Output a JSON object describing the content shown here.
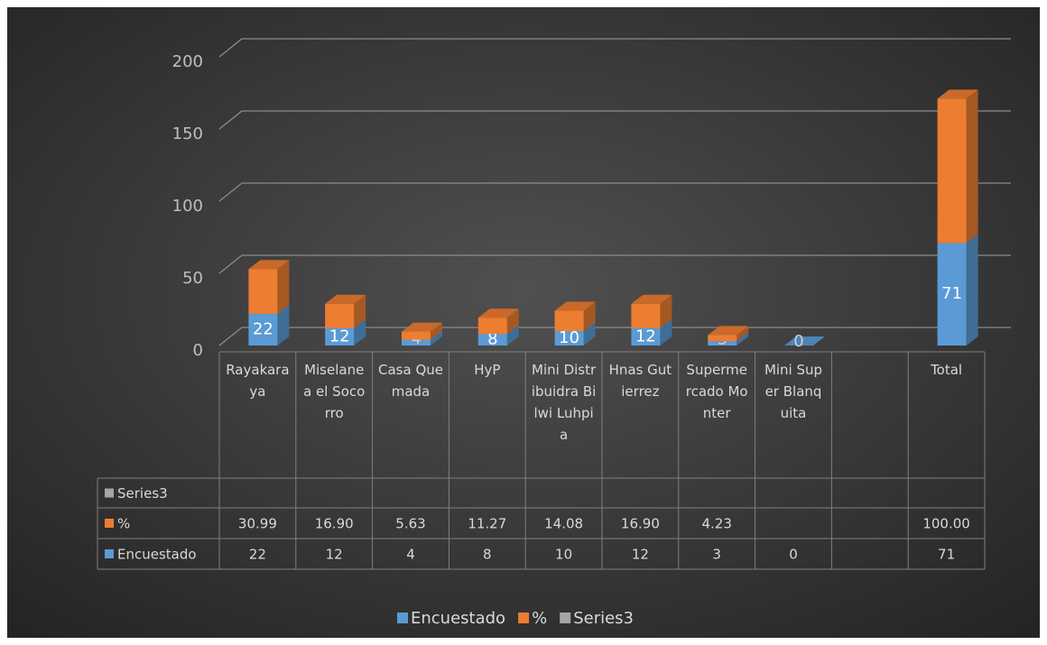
{
  "chart_data": {
    "type": "bar3d_stacked",
    "categories": [
      "Rayakaraya",
      "Miselanea el Socorro",
      "Casa Quemada",
      "HyP",
      "Mini Distribuidra Bilwi Luhpia",
      "Hnas Gutierrez",
      "Supermercado Monter",
      "Mini Super Blanquita",
      null,
      "Total"
    ],
    "series": [
      {
        "name": "Encuestado",
        "color": "#5b9bd5",
        "values": [
          22,
          12,
          4,
          8,
          10,
          12,
          3,
          0,
          null,
          71
        ]
      },
      {
        "name": "%",
        "color": "#ed7d31",
        "values": [
          30.99,
          16.9,
          5.63,
          11.27,
          14.08,
          16.9,
          4.23,
          null,
          null,
          100
        ],
        "value_labels": [
          "30.99",
          "16.90",
          "5.63",
          "11.27",
          "14.08",
          "16.90",
          "4.23",
          null,
          null,
          "100.00"
        ]
      },
      {
        "name": "Series3",
        "color": "#a5a5a5",
        "values": [
          null,
          null,
          null,
          null,
          null,
          null,
          null,
          null,
          null,
          null
        ]
      }
    ],
    "ylim": [
      0,
      200
    ],
    "yticks": [
      0,
      50,
      100,
      150,
      200
    ],
    "grid": true,
    "legend": "bottom",
    "data_table": true
  }
}
